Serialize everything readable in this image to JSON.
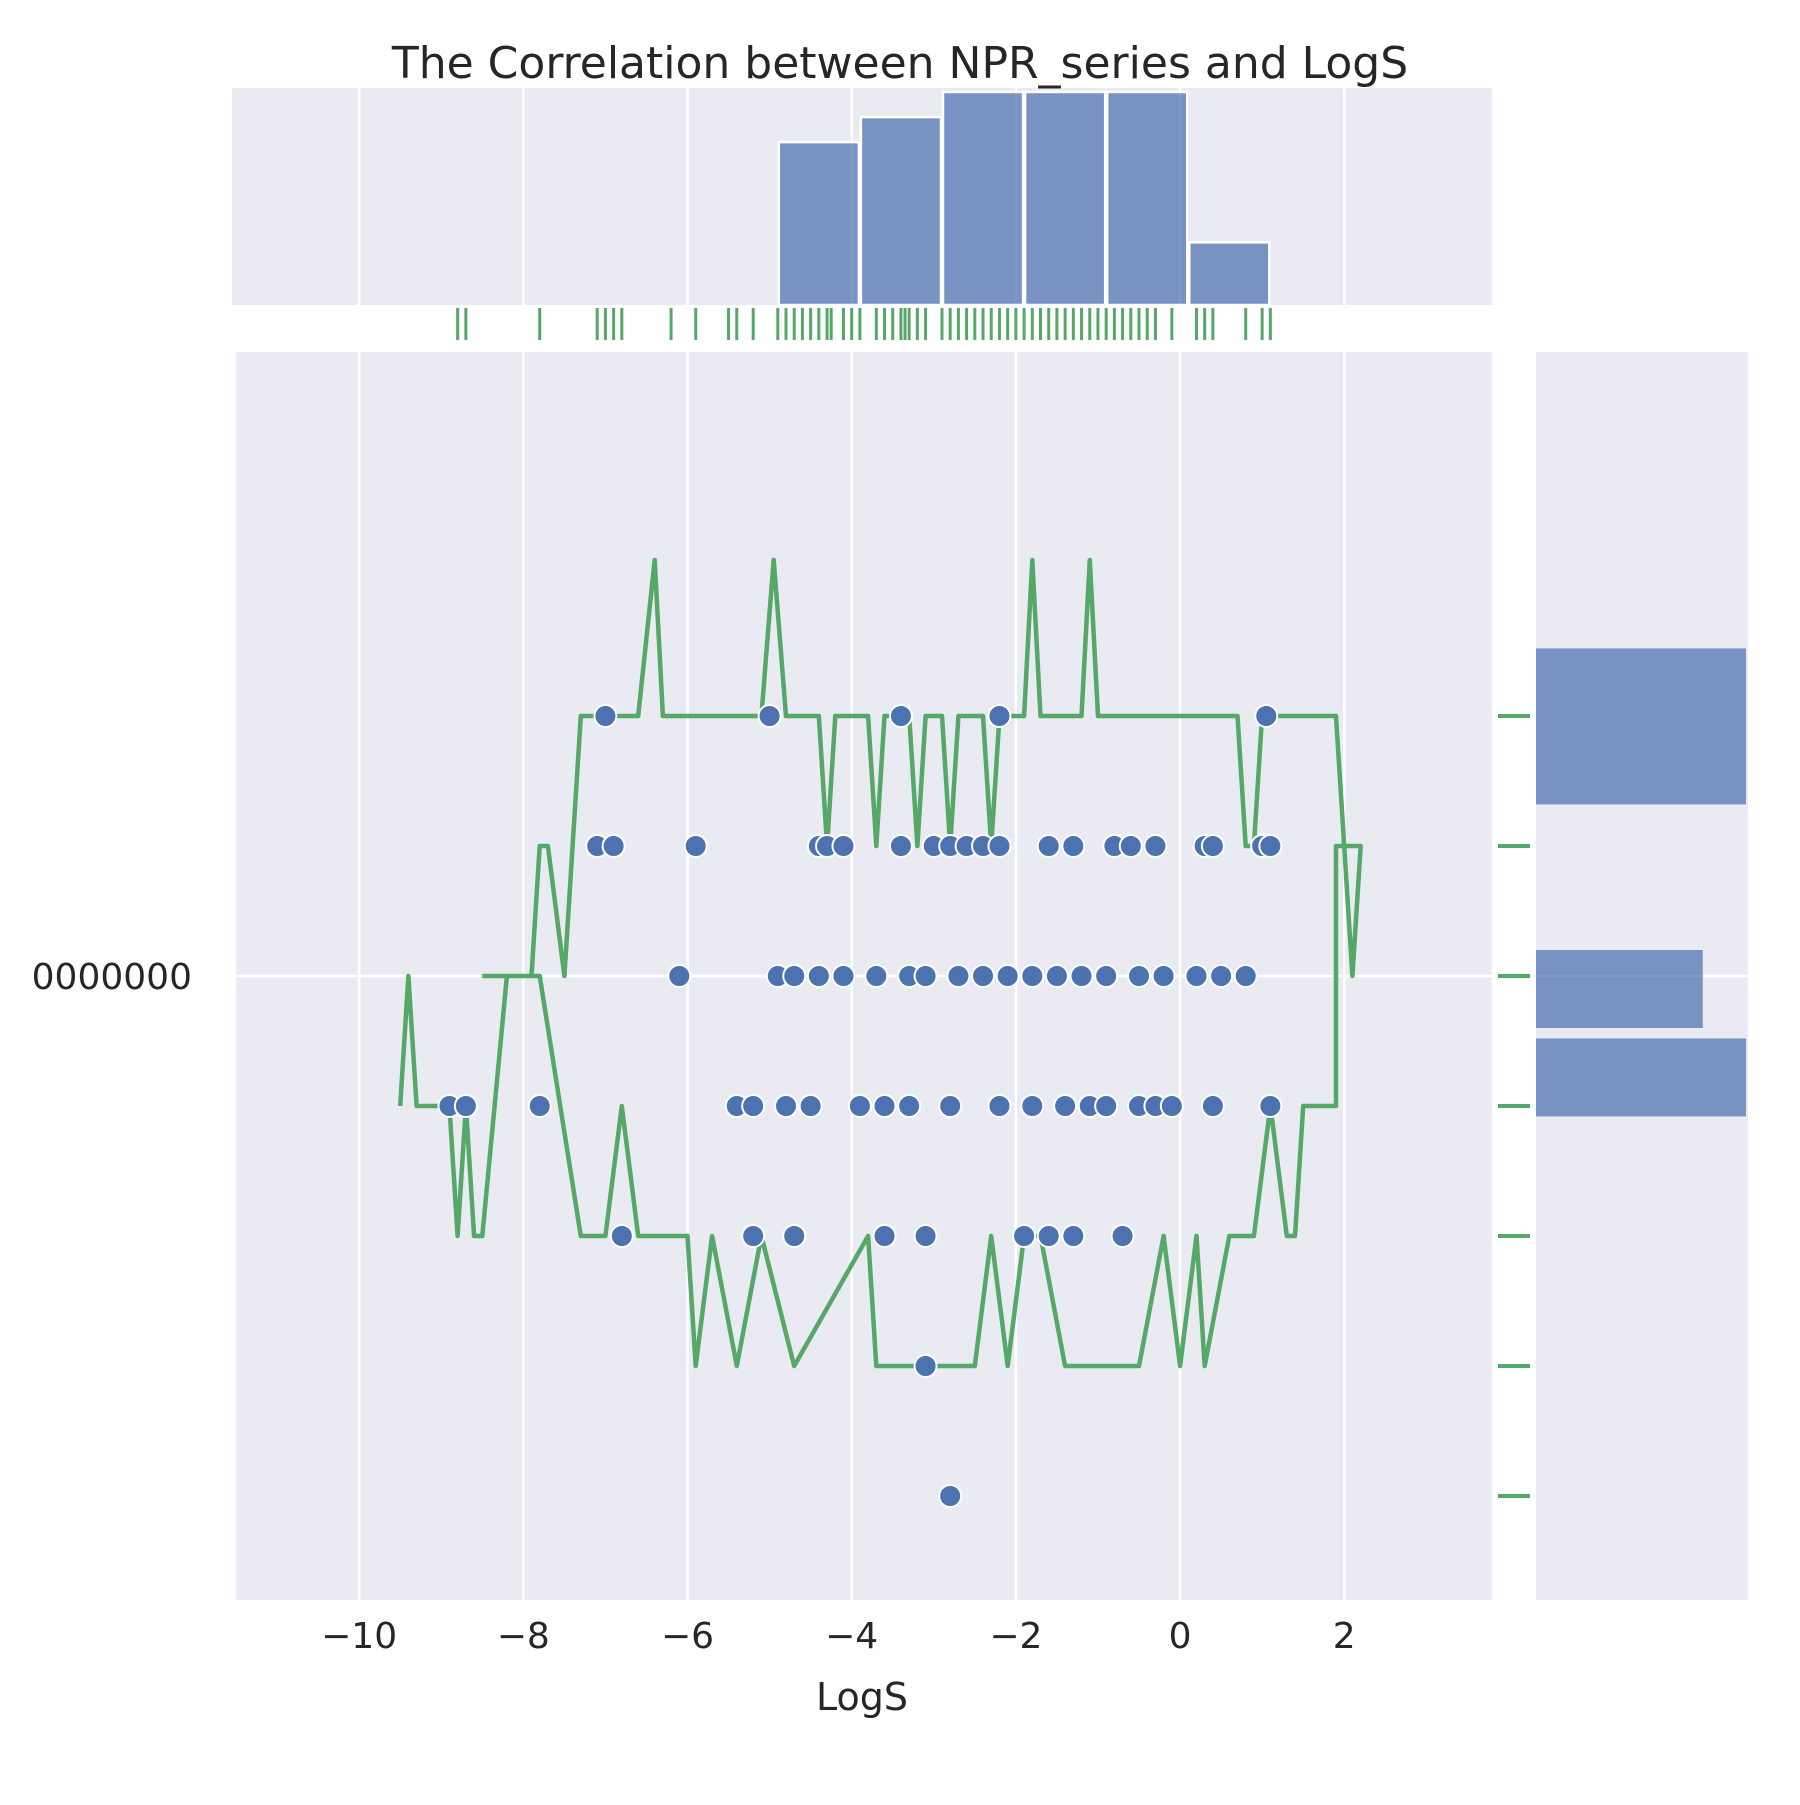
{
  "chart_data": {
    "type": "scatter",
    "title": "The Correlation between NPR_series and LogS",
    "xlabel": "LogS",
    "ylabel": "",
    "xlim": [
      -11.5,
      3.8
    ],
    "ylim": [
      -2.4,
      2.4
    ],
    "x_ticks": [
      -10,
      -8,
      -6,
      -4,
      -2,
      0,
      2
    ],
    "x_tick_labels": [
      "−10",
      "−8",
      "−6",
      "−4",
      "−2",
      "0",
      "2"
    ],
    "y_ticks": [
      0
    ],
    "y_tick_labels": [
      "0000000"
    ],
    "grid": true,
    "colors": {
      "background": "#eaeaf2",
      "scatter": "#4c72b0",
      "line": "#55a868",
      "rug": "#55a868",
      "hist": "#4c72b0"
    },
    "points": [
      {
        "x": -7.0,
        "y": 1.0
      },
      {
        "x": -5.0,
        "y": 1.0
      },
      {
        "x": -3.4,
        "y": 1.0
      },
      {
        "x": -2.2,
        "y": 1.0
      },
      {
        "x": 1.05,
        "y": 1.0
      },
      {
        "x": -7.1,
        "y": 0.5
      },
      {
        "x": -6.9,
        "y": 0.5
      },
      {
        "x": -5.9,
        "y": 0.5
      },
      {
        "x": -4.4,
        "y": 0.5
      },
      {
        "x": -4.3,
        "y": 0.5
      },
      {
        "x": -4.1,
        "y": 0.5
      },
      {
        "x": -3.4,
        "y": 0.5
      },
      {
        "x": -3.0,
        "y": 0.5
      },
      {
        "x": -2.8,
        "y": 0.5
      },
      {
        "x": -2.6,
        "y": 0.5
      },
      {
        "x": -2.4,
        "y": 0.5
      },
      {
        "x": -2.2,
        "y": 0.5
      },
      {
        "x": -1.6,
        "y": 0.5
      },
      {
        "x": -1.3,
        "y": 0.5
      },
      {
        "x": -0.8,
        "y": 0.5
      },
      {
        "x": -0.6,
        "y": 0.5
      },
      {
        "x": -0.3,
        "y": 0.5
      },
      {
        "x": 0.3,
        "y": 0.5
      },
      {
        "x": 0.4,
        "y": 0.5
      },
      {
        "x": 1.0,
        "y": 0.5
      },
      {
        "x": 1.1,
        "y": 0.5
      },
      {
        "x": -6.1,
        "y": 0.0
      },
      {
        "x": -4.9,
        "y": 0.0
      },
      {
        "x": -4.7,
        "y": 0.0
      },
      {
        "x": -4.4,
        "y": 0.0
      },
      {
        "x": -4.1,
        "y": 0.0
      },
      {
        "x": -3.7,
        "y": 0.0
      },
      {
        "x": -3.3,
        "y": 0.0
      },
      {
        "x": -3.1,
        "y": 0.0
      },
      {
        "x": -2.7,
        "y": 0.0
      },
      {
        "x": -2.4,
        "y": 0.0
      },
      {
        "x": -2.1,
        "y": 0.0
      },
      {
        "x": -1.8,
        "y": 0.0
      },
      {
        "x": -1.5,
        "y": 0.0
      },
      {
        "x": -1.2,
        "y": 0.0
      },
      {
        "x": -0.9,
        "y": 0.0
      },
      {
        "x": -0.5,
        "y": 0.0
      },
      {
        "x": -0.2,
        "y": 0.0
      },
      {
        "x": 0.2,
        "y": 0.0
      },
      {
        "x": 0.5,
        "y": 0.0
      },
      {
        "x": 0.8,
        "y": 0.0
      },
      {
        "x": -8.9,
        "y": -0.5
      },
      {
        "x": -8.7,
        "y": -0.5
      },
      {
        "x": -7.8,
        "y": -0.5
      },
      {
        "x": -5.4,
        "y": -0.5
      },
      {
        "x": -5.2,
        "y": -0.5
      },
      {
        "x": -4.8,
        "y": -0.5
      },
      {
        "x": -4.5,
        "y": -0.5
      },
      {
        "x": -3.9,
        "y": -0.5
      },
      {
        "x": -3.6,
        "y": -0.5
      },
      {
        "x": -3.3,
        "y": -0.5
      },
      {
        "x": -2.8,
        "y": -0.5
      },
      {
        "x": -2.2,
        "y": -0.5
      },
      {
        "x": -1.8,
        "y": -0.5
      },
      {
        "x": -1.4,
        "y": -0.5
      },
      {
        "x": -1.1,
        "y": -0.5
      },
      {
        "x": -0.9,
        "y": -0.5
      },
      {
        "x": -0.5,
        "y": -0.5
      },
      {
        "x": -0.3,
        "y": -0.5
      },
      {
        "x": -0.1,
        "y": -0.5
      },
      {
        "x": 0.4,
        "y": -0.5
      },
      {
        "x": 1.1,
        "y": -0.5
      },
      {
        "x": -6.8,
        "y": -1.0
      },
      {
        "x": -5.2,
        "y": -1.0
      },
      {
        "x": -4.7,
        "y": -1.0
      },
      {
        "x": -3.6,
        "y": -1.0
      },
      {
        "x": -3.1,
        "y": -1.0
      },
      {
        "x": -1.9,
        "y": -1.0
      },
      {
        "x": -1.6,
        "y": -1.0
      },
      {
        "x": -1.3,
        "y": -1.0
      },
      {
        "x": -0.7,
        "y": -1.0
      },
      {
        "x": -3.1,
        "y": -1.5
      },
      {
        "x": -2.8,
        "y": -2.0
      }
    ],
    "line_series": [
      {
        "x": -9.5,
        "y": -0.5
      },
      {
        "x": -9.4,
        "y": 0.0
      },
      {
        "x": -9.3,
        "y": -0.5
      },
      {
        "x": -8.9,
        "y": -0.5
      },
      {
        "x": -8.8,
        "y": -1.0
      },
      {
        "x": -8.7,
        "y": -0.5
      },
      {
        "x": -8.6,
        "y": -1.0
      },
      {
        "x": -8.5,
        "y": -1.0
      },
      {
        "x": -8.2,
        "y": 0.0
      },
      {
        "x": -7.9,
        "y": 0.0
      },
      {
        "x": -7.8,
        "y": 0.5
      },
      {
        "x": -7.7,
        "y": 0.5
      },
      {
        "x": -7.5,
        "y": 0.0
      },
      {
        "x": -7.4,
        "y": 0.5
      },
      {
        "x": -7.3,
        "y": 1.0
      },
      {
        "x": -6.6,
        "y": 1.0
      },
      {
        "x": -6.4,
        "y": 1.6
      },
      {
        "x": -6.3,
        "y": 1.0
      },
      {
        "x": -5.1,
        "y": 1.0
      },
      {
        "x": -4.95,
        "y": 1.6
      },
      {
        "x": -4.8,
        "y": 1.0
      },
      {
        "x": -4.4,
        "y": 1.0
      },
      {
        "x": -4.3,
        "y": 0.5
      },
      {
        "x": -4.2,
        "y": 1.0
      },
      {
        "x": -3.8,
        "y": 1.0
      },
      {
        "x": -3.7,
        "y": 0.5
      },
      {
        "x": -3.6,
        "y": 1.0
      },
      {
        "x": -3.3,
        "y": 1.0
      },
      {
        "x": -3.2,
        "y": 0.5
      },
      {
        "x": -3.1,
        "y": 1.0
      },
      {
        "x": -2.9,
        "y": 1.0
      },
      {
        "x": -2.8,
        "y": 0.5
      },
      {
        "x": -2.7,
        "y": 1.0
      },
      {
        "x": -2.4,
        "y": 1.0
      },
      {
        "x": -2.3,
        "y": 0.5
      },
      {
        "x": -2.2,
        "y": 1.0
      },
      {
        "x": -1.9,
        "y": 1.0
      },
      {
        "x": -1.8,
        "y": 1.6
      },
      {
        "x": -1.7,
        "y": 1.0
      },
      {
        "x": -1.2,
        "y": 1.0
      },
      {
        "x": -1.1,
        "y": 1.6
      },
      {
        "x": -1.0,
        "y": 1.0
      },
      {
        "x": 0.7,
        "y": 1.0
      },
      {
        "x": 0.8,
        "y": 0.5
      },
      {
        "x": 0.9,
        "y": 0.5
      },
      {
        "x": 1.0,
        "y": 1.0
      },
      {
        "x": 1.9,
        "y": 1.0
      },
      {
        "x": 2.0,
        "y": 0.5
      },
      {
        "x": 2.1,
        "y": 0.0
      },
      {
        "x": 2.2,
        "y": 0.5
      },
      {
        "x": 1.9,
        "y": 0.5
      },
      {
        "x": 1.9,
        "y": -0.5
      },
      {
        "x": 1.5,
        "y": -0.5
      },
      {
        "x": 1.4,
        "y": -1.0
      },
      {
        "x": 1.3,
        "y": -1.0
      },
      {
        "x": 1.1,
        "y": -0.5
      },
      {
        "x": 0.9,
        "y": -1.0
      },
      {
        "x": 0.6,
        "y": -1.0
      },
      {
        "x": 0.3,
        "y": -1.5
      },
      {
        "x": 0.2,
        "y": -1.0
      },
      {
        "x": 0.0,
        "y": -1.5
      },
      {
        "x": -0.2,
        "y": -1.0
      },
      {
        "x": -0.5,
        "y": -1.5
      },
      {
        "x": -1.4,
        "y": -1.5
      },
      {
        "x": -1.7,
        "y": -1.0
      },
      {
        "x": -1.9,
        "y": -1.0
      },
      {
        "x": -2.1,
        "y": -1.5
      },
      {
        "x": -2.3,
        "y": -1.0
      },
      {
        "x": -2.5,
        "y": -1.5
      },
      {
        "x": -3.7,
        "y": -1.5
      },
      {
        "x": -3.8,
        "y": -1.0
      },
      {
        "x": -4.7,
        "y": -1.5
      },
      {
        "x": -5.1,
        "y": -1.0
      },
      {
        "x": -5.4,
        "y": -1.5
      },
      {
        "x": -5.7,
        "y": -1.0
      },
      {
        "x": -5.9,
        "y": -1.5
      },
      {
        "x": -6.0,
        "y": -1.0
      },
      {
        "x": -6.6,
        "y": -1.0
      },
      {
        "x": -6.8,
        "y": -0.5
      },
      {
        "x": -7.0,
        "y": -1.0
      },
      {
        "x": -7.3,
        "y": -1.0
      },
      {
        "x": -7.8,
        "y": 0.0
      },
      {
        "x": -8.5,
        "y": 0.0
      }
    ],
    "rug_x": [
      -8.8,
      -8.7,
      -7.8,
      -7.1,
      -7.0,
      -6.9,
      -6.8,
      -6.2,
      -5.9,
      -5.5,
      -5.4,
      -5.2,
      -4.9,
      -4.8,
      -4.7,
      -4.6,
      -4.5,
      -4.4,
      -4.3,
      -4.25,
      -4.1,
      -4.0,
      -3.9,
      -3.7,
      -3.6,
      -3.5,
      -3.4,
      -3.35,
      -3.3,
      -3.2,
      -3.1,
      -2.9,
      -2.8,
      -2.7,
      -2.6,
      -2.5,
      -2.4,
      -2.3,
      -2.2,
      -2.1,
      -2.0,
      -1.9,
      -1.8,
      -1.7,
      -1.6,
      -1.5,
      -1.4,
      -1.3,
      -1.2,
      -1.1,
      -1.0,
      -0.9,
      -0.8,
      -0.7,
      -0.6,
      -0.5,
      -0.4,
      -0.3,
      -0.1,
      0.2,
      0.3,
      0.4,
      0.8,
      1.0,
      1.1
    ],
    "rug_y": [
      -2.0,
      -1.5,
      -1.0,
      -0.5,
      0.0,
      0.5,
      1.0
    ],
    "top_hist": [
      {
        "start": -4.9,
        "end": -3.9,
        "count": 13
      },
      {
        "start": -3.9,
        "end": -2.9,
        "count": 15
      },
      {
        "start": -2.9,
        "end": -1.9,
        "count": 17
      },
      {
        "start": -1.9,
        "end": -0.9,
        "count": 17
      },
      {
        "start": -0.9,
        "end": 0.1,
        "count": 17
      },
      {
        "start": 0.1,
        "end": 1.1,
        "count": 5
      }
    ],
    "right_hist": [
      {
        "start": 0.66,
        "end": 1.26,
        "count": 34
      },
      {
        "start": -0.2,
        "end": 0.1,
        "count": 27
      },
      {
        "start": -0.54,
        "end": -0.24,
        "count": 34
      }
    ]
  }
}
